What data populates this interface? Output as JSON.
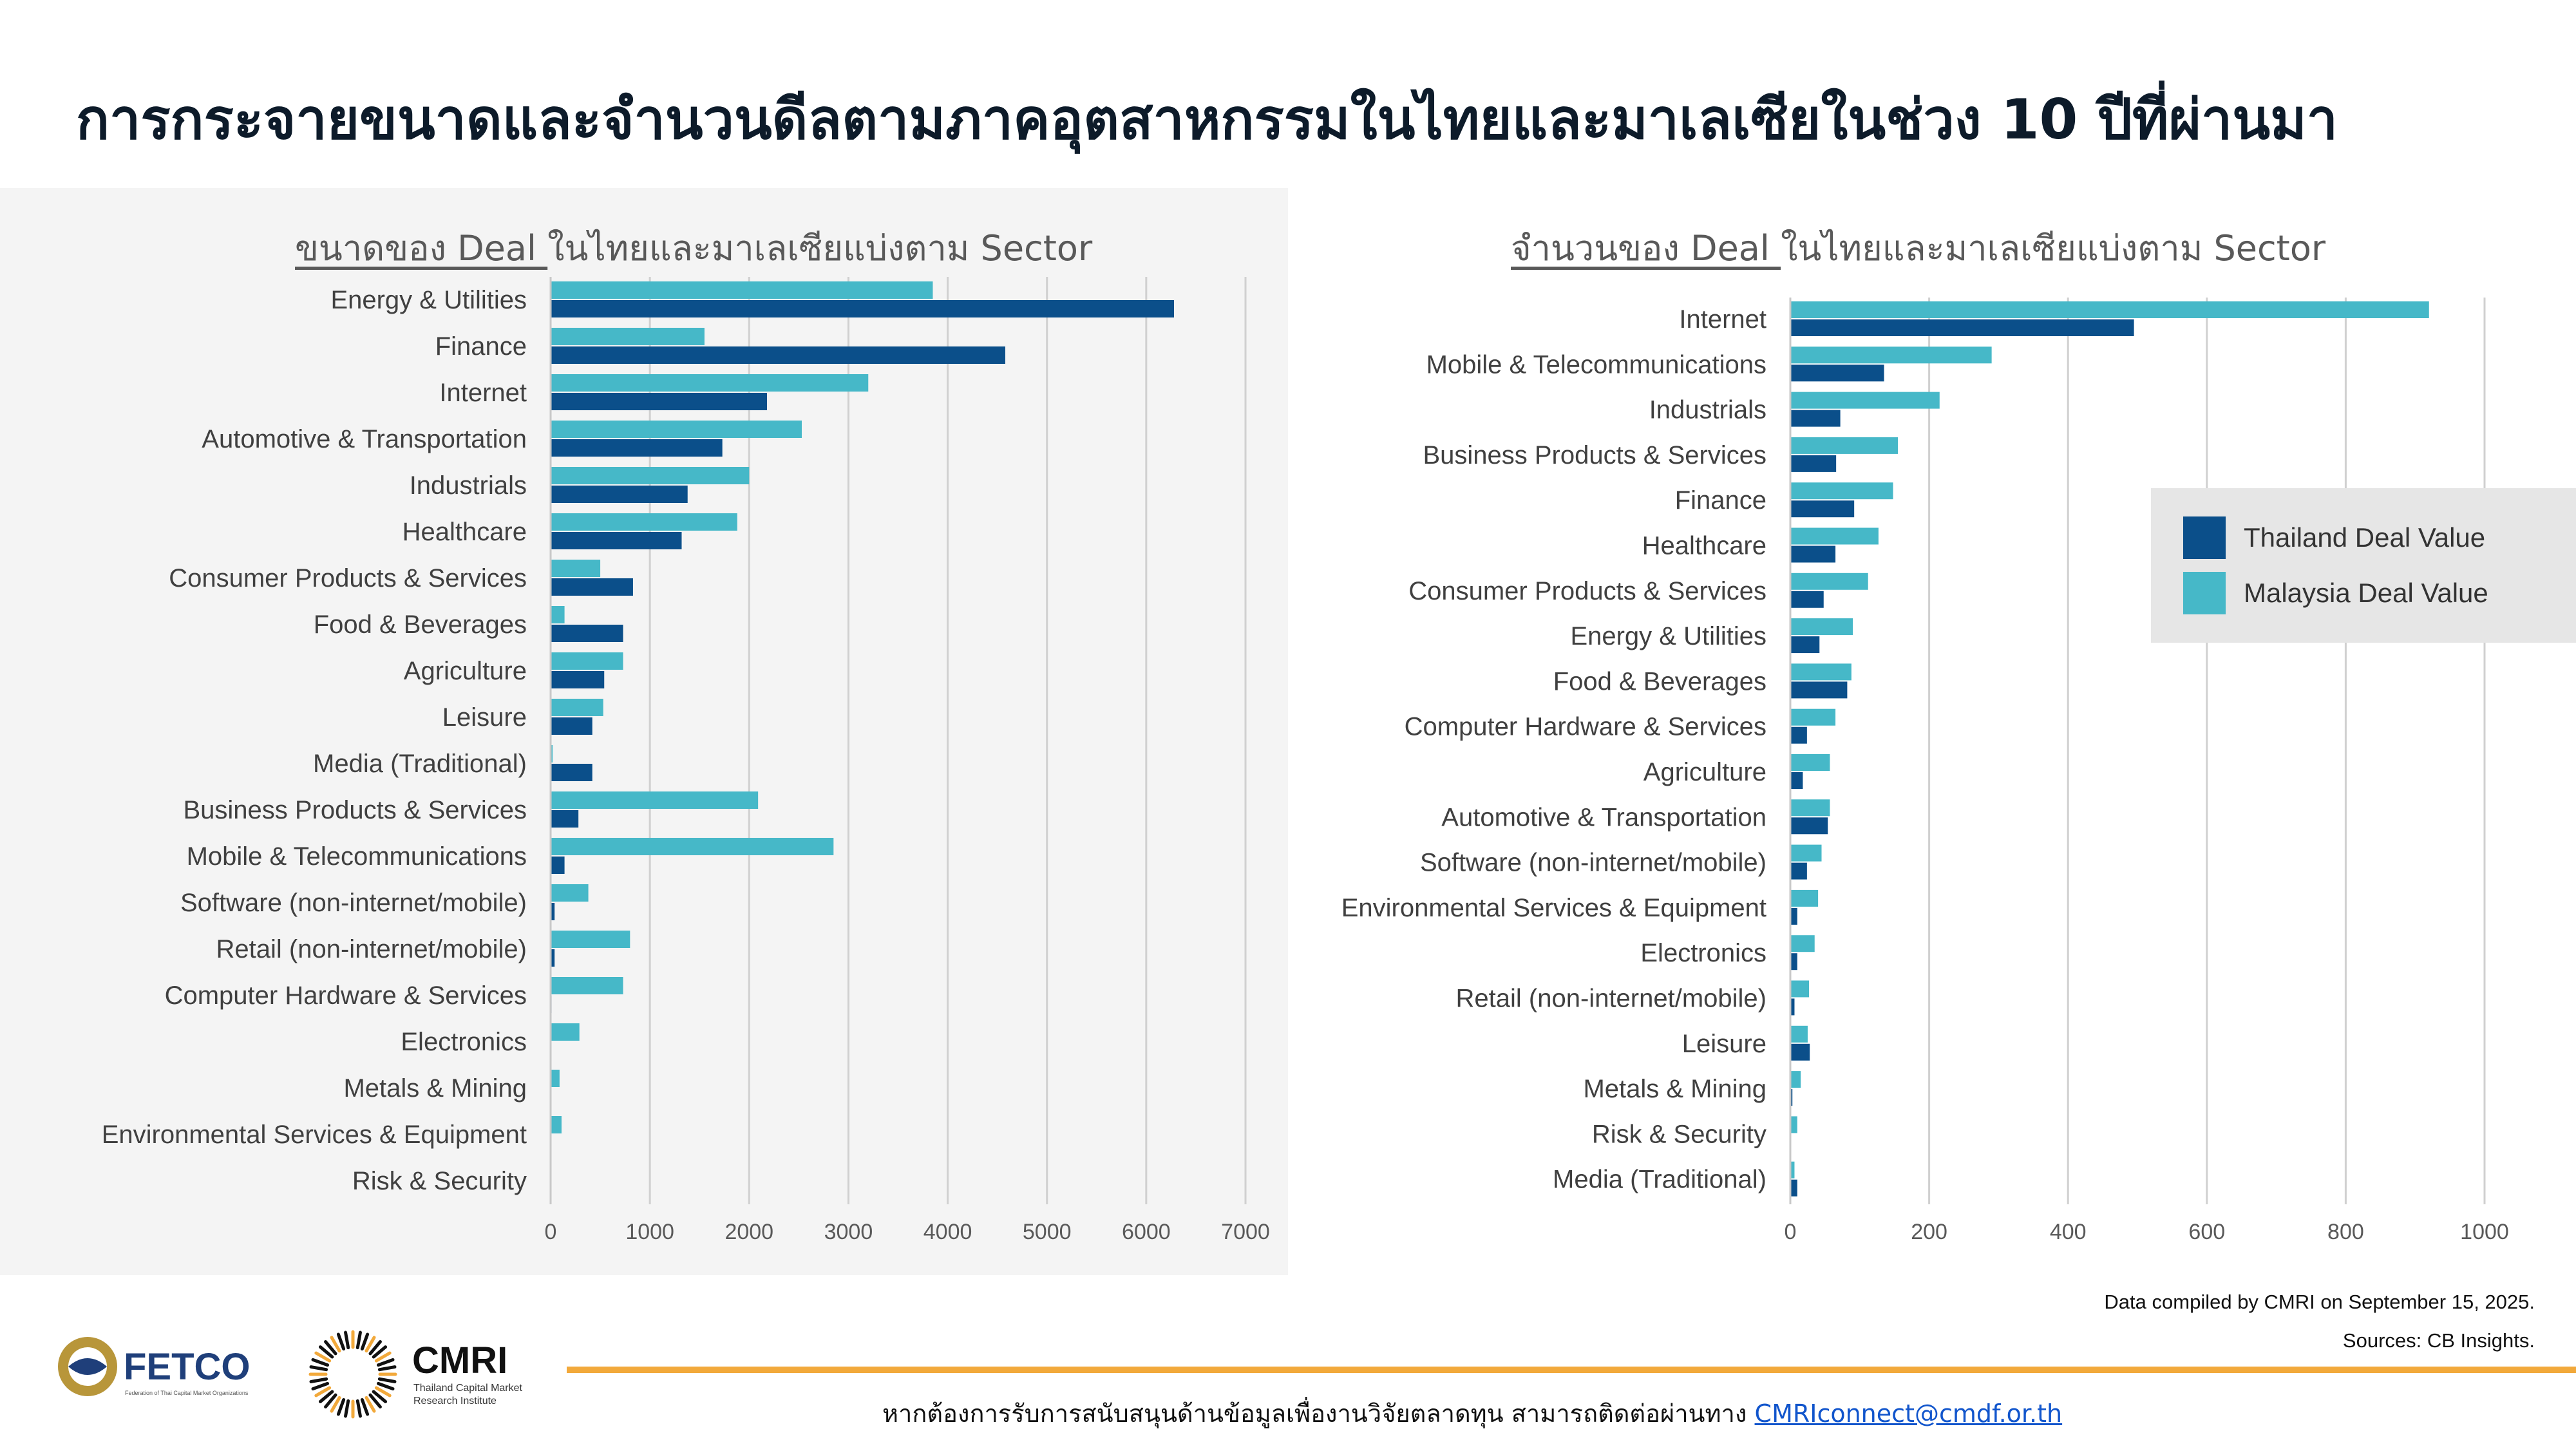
{
  "page": {
    "title": "การกระจายขนาดและจำนวนดีลตามภาคอุตสาหกรรมในไทยและมาเลเซียในช่วง 10 ปีที่ผ่านมา",
    "data_note": "Data compiled by CMRI on September 15, 2025.",
    "sources": "Sources: CB Insights.",
    "contact_text": "หากต้องการรับการสนับสนุนด้านข้อมูลเพื่องานวิจัยตลาดทุน สามารถติดต่อผ่านทาง ",
    "contact_email": "CMRIconnect@cmdf.or.th",
    "logo_fetco": "FETCO",
    "logo_fetco_sub": "Federation of Thai Capital Market Organizations",
    "logo_cmri": "CMRI",
    "logo_cmri_sub1": "Thailand Capital Market",
    "logo_cmri_sub2": "Research Institute"
  },
  "legend": {
    "items": [
      {
        "label": "Thailand Deal Value",
        "color": "#0b4f8a"
      },
      {
        "label": "Malaysia Deal Value",
        "color": "#46b8c8"
      }
    ]
  },
  "chart_data": [
    {
      "type": "bar",
      "orientation": "horizontal",
      "title_underlined": "ขนาดของ Deal ",
      "title_rest": "ในไทยและมาเลเซียแบ่งตาม Sector",
      "categories": [
        "Energy & Utilities",
        "Finance",
        "Internet",
        "Automotive & Transportation",
        "Industrials",
        "Healthcare",
        "Consumer Products & Services",
        "Food & Beverages",
        "Agriculture",
        "Leisure",
        "Media (Traditional)",
        "Business Products & Services",
        "Mobile & Telecommunications",
        "Software (non-internet/mobile)",
        "Retail (non-internet/mobile)",
        "Computer Hardware & Services",
        "Electronics",
        "Metals & Mining",
        "Environmental Services & Equipment",
        "Risk & Security"
      ],
      "series": [
        {
          "name": "Malaysia Deal Value",
          "color": "#46b8c8",
          "values": [
            3850,
            1550,
            3200,
            2530,
            2000,
            1880,
            500,
            140,
            730,
            530,
            20,
            2090,
            2850,
            380,
            800,
            730,
            290,
            90,
            110,
            0
          ]
        },
        {
          "name": "Thailand Deal Value",
          "color": "#0b4f8a",
          "values": [
            6280,
            4580,
            2180,
            1730,
            1380,
            1320,
            830,
            730,
            540,
            420,
            420,
            280,
            140,
            40,
            40,
            10,
            0,
            0,
            0,
            0
          ]
        }
      ],
      "xlim": [
        0,
        7000
      ],
      "xticks": [
        0,
        1000,
        2000,
        3000,
        4000,
        5000,
        6000,
        7000
      ],
      "grid": true
    },
    {
      "type": "bar",
      "orientation": "horizontal",
      "title_underlined": "จำนวนของ Deal ",
      "title_rest": "ในไทยและมาเลเซียแบ่งตาม Sector",
      "categories": [
        "Internet",
        "Mobile & Telecommunications",
        "Industrials",
        "Business Products & Services",
        "Finance",
        "Healthcare",
        "Consumer Products & Services",
        "Energy & Utilities",
        "Food & Beverages",
        "Computer Hardware & Services",
        "Agriculture",
        "Automotive & Transportation",
        "Software (non-internet/mobile)",
        "Environmental Services & Equipment",
        "Electronics",
        "Retail (non-internet/mobile)",
        "Leisure",
        "Metals & Mining",
        "Risk & Security",
        "Media (Traditional)"
      ],
      "series": [
        {
          "name": "Malaysia Deal Value",
          "color": "#46b8c8",
          "values": [
            920,
            290,
            215,
            155,
            148,
            127,
            112,
            90,
            88,
            65,
            57,
            57,
            45,
            40,
            35,
            27,
            25,
            15,
            10,
            6
          ]
        },
        {
          "name": "Thailand Deal Value",
          "color": "#0b4f8a",
          "values": [
            495,
            135,
            72,
            66,
            92,
            65,
            48,
            42,
            82,
            24,
            18,
            54,
            24,
            10,
            10,
            6,
            28,
            3,
            0,
            10
          ]
        }
      ],
      "xlim": [
        0,
        1000
      ],
      "xticks": [
        0,
        200,
        400,
        600,
        800,
        1000
      ],
      "grid": true
    }
  ]
}
